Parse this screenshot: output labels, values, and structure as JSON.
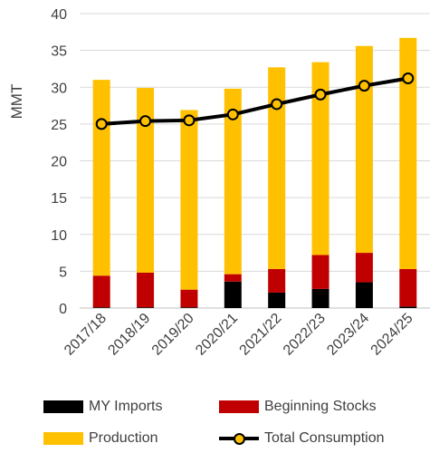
{
  "chart_data": {
    "type": "bar",
    "stacked": true,
    "ylabel": "MMT",
    "ylim": [
      0,
      40
    ],
    "yticks": [
      0,
      5,
      10,
      15,
      20,
      25,
      30,
      35,
      40
    ],
    "grid": true,
    "legend_position": "bottom",
    "categories": [
      "2017/18",
      "2018/19",
      "2019/20",
      "2020/21",
      "2021/22",
      "2022/23",
      "2023/24",
      "2024/25"
    ],
    "series": [
      {
        "name": "MY Imports",
        "kind": "bar",
        "color": "#000000",
        "values": [
          0.1,
          0.1,
          0.1,
          3.6,
          2.1,
          2.6,
          3.5,
          0.2
        ]
      },
      {
        "name": "Beginning Stocks",
        "kind": "bar",
        "color": "#c00000",
        "values": [
          4.3,
          4.7,
          2.4,
          1.0,
          3.2,
          4.6,
          4.0,
          5.1
        ]
      },
      {
        "name": "Production",
        "kind": "bar",
        "color": "#ffc000",
        "values": [
          26.6,
          25.1,
          24.4,
          25.2,
          27.4,
          26.2,
          28.1,
          31.4
        ]
      },
      {
        "name": "Total Consumption",
        "kind": "line",
        "color": "#000000",
        "marker_color": "#ffc000",
        "values": [
          25.0,
          25.4,
          25.5,
          26.3,
          27.7,
          29.0,
          30.2,
          31.2
        ]
      }
    ]
  }
}
